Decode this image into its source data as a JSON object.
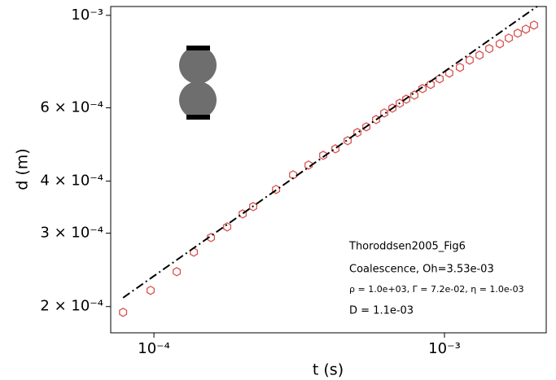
{
  "chart_data": {
    "type": "scatter",
    "xlabel": "t (s)",
    "ylabel": "d (m)",
    "xscale": "log",
    "yscale": "log",
    "xlim": [
      7.1e-05,
      0.00224
    ],
    "ylim": [
      0.000173,
      0.00105
    ],
    "xticks": [
      {
        "value": 0.0001,
        "label": "10⁻⁴"
      },
      {
        "value": 0.001,
        "label": "10⁻³"
      }
    ],
    "yticks": [
      {
        "value": 0.0002,
        "label": "2 × 10⁻⁴"
      },
      {
        "value": 0.0003,
        "label": "3 × 10⁻⁴"
      },
      {
        "value": 0.0004,
        "label": "4 × 10⁻⁴"
      },
      {
        "value": 0.0006,
        "label": "6 × 10⁻⁴"
      },
      {
        "value": 0.001,
        "label": "10⁻³"
      }
    ],
    "annotations": [
      "Thoroddsen2005_Fig6",
      "Coalescence, Oh=3.53e-03",
      "ρ = 1.0e+03, Γ = 7.2e-02, η = 1.0e-03",
      "D = 1.1e-03"
    ],
    "series": [
      {
        "kind": "points",
        "marker": "hexagon",
        "color": "#d9534f",
        "x": [
          7.83e-05,
          9.74e-05,
          0.0001198,
          0.0001372,
          0.0001571,
          0.0001787,
          0.000202,
          0.0002196,
          0.0002632,
          0.0003013,
          0.0003406,
          0.0003825,
          0.0004213,
          0.0004642,
          0.0005016,
          0.0005384,
          0.0005817,
          0.0006206,
          0.0006618,
          0.0007013,
          0.0007385,
          0.0007877,
          0.0008402,
          0.0008962,
          0.0009621,
          0.001039,
          0.00113,
          0.001221,
          0.00132,
          0.001426,
          0.00155,
          0.001665,
          0.001787,
          0.001906,
          0.002033
        ],
        "values": [
          0.0001937,
          0.0002187,
          0.0002425,
          0.0002702,
          0.0002929,
          0.0003106,
          0.0003337,
          0.0003475,
          0.000382,
          0.0004142,
          0.0004372,
          0.0004613,
          0.0004782,
          0.0005002,
          0.0005232,
          0.00054,
          0.0005623,
          0.0005829,
          0.0005988,
          0.0006152,
          0.0006291,
          0.0006434,
          0.000667,
          0.0006823,
          0.0007041,
          0.0007267,
          0.0007499,
          0.000781,
          0.0008024,
          0.0008318,
          0.0008544,
          0.0008818,
          0.000906,
          0.0009265,
          0.0009475
        ]
      },
      {
        "kind": "line",
        "style": "dashdot",
        "color": "#000000",
        "x": [
          7.83e-05,
          0.002086
        ],
        "values": [
          0.00021,
          0.001051
        ]
      }
    ]
  }
}
